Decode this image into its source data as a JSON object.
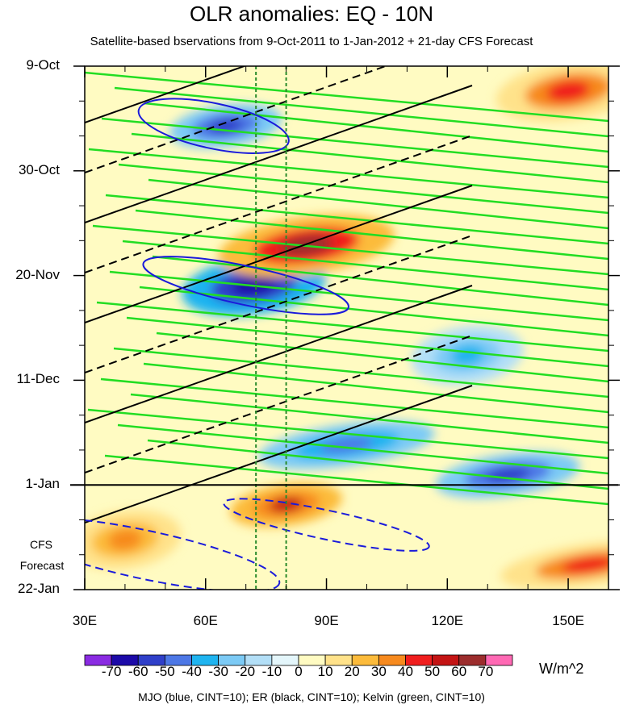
{
  "chart_data": {
    "type": "heatmap",
    "title": "OLR anomalies: EQ - 10N",
    "subtitle": "Satellite-based bservations from 9-Oct-2011 to 1-Jan-2012 + 21-day CFS Forecast",
    "xlabel": "",
    "ylabel": "",
    "xlim": [
      30,
      160
    ],
    "ylim_days": [
      0,
      105
    ],
    "x_ticks": [
      {
        "value": 30,
        "label": "30E"
      },
      {
        "value": 60,
        "label": "60E"
      },
      {
        "value": 90,
        "label": "90E"
      },
      {
        "value": 120,
        "label": "120E"
      },
      {
        "value": 150,
        "label": "150E"
      }
    ],
    "y_ticks": [
      {
        "value": 0,
        "label": "9-Oct"
      },
      {
        "value": 21,
        "label": "30-Oct"
      },
      {
        "value": 42,
        "label": "20-Nov"
      },
      {
        "value": 63,
        "label": "11-Dec"
      },
      {
        "value": 84,
        "label": "1-Jan"
      },
      {
        "value": 105,
        "label": "22-Jan"
      }
    ],
    "forecast_label": [
      "CFS",
      "Forecast"
    ],
    "forecast_start_day": 84,
    "reference_longitudes": [
      72.5,
      80
    ],
    "units": "W/m^2",
    "colorbar": {
      "labels": [
        "-70",
        "-60",
        "-50",
        "-40",
        "-30",
        "-20",
        "-10",
        "0",
        "10",
        "20",
        "30",
        "40",
        "50",
        "60",
        "70"
      ],
      "colors": [
        "#8a2be2",
        "#1c0aa8",
        "#2f3fc9",
        "#4d78e6",
        "#1fb4f0",
        "#7ccaf5",
        "#b3dff7",
        "#e4f6fb",
        "#fffbc2",
        "#ffe28a",
        "#fcbb3b",
        "#f78a1e",
        "#f01e1e",
        "#c41414",
        "#9c2d2d",
        "#ff69b4"
      ]
    },
    "anomaly_features": [
      {
        "lon": 65,
        "day": 12,
        "value": -60
      },
      {
        "lon": 72,
        "day": 44,
        "value": -70
      },
      {
        "lon": 95,
        "day": 76,
        "value": -50
      },
      {
        "lon": 125,
        "day": 58,
        "value": -40
      },
      {
        "lon": 135,
        "day": 82,
        "value": -60
      },
      {
        "lon": 85,
        "day": 36,
        "value": 60
      },
      {
        "lon": 80,
        "day": 88,
        "value": 50
      },
      {
        "lon": 150,
        "day": 5,
        "value": 40
      },
      {
        "lon": 155,
        "day": 100,
        "value": 40
      },
      {
        "lon": 40,
        "day": 95,
        "value": 30
      }
    ],
    "contour_legend": "MJO (blue, CINT=10); ER (black, CINT=10); Kelvin (green, CINT=10)"
  }
}
